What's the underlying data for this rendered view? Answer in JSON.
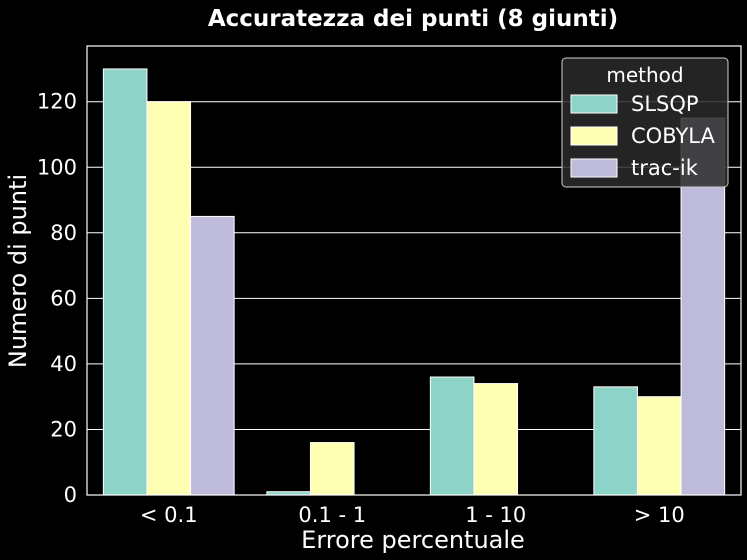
{
  "chart_data": {
    "type": "bar",
    "title": "Accuratezza dei punti (8 giunti)",
    "xlabel": "Errore percentuale",
    "ylabel": "Numero di punti",
    "categories": [
      "< 0.1",
      "0.1 - 1",
      "1 - 10",
      "> 10"
    ],
    "series": [
      {
        "name": "SLSQP",
        "values": [
          130,
          1,
          36,
          33
        ]
      },
      {
        "name": "COBYLA",
        "values": [
          120,
          16,
          34,
          30
        ]
      },
      {
        "name": "trac-ik",
        "values": [
          85,
          0,
          0,
          115
        ]
      }
    ],
    "ylim": [
      0,
      137
    ],
    "yticks": [
      0,
      20,
      40,
      60,
      80,
      100,
      120
    ],
    "grid": true,
    "legend": {
      "title": "method",
      "placement": "top-right"
    },
    "colors": [
      "#8dd3c7",
      "#ffffb3",
      "#bebada"
    ]
  }
}
